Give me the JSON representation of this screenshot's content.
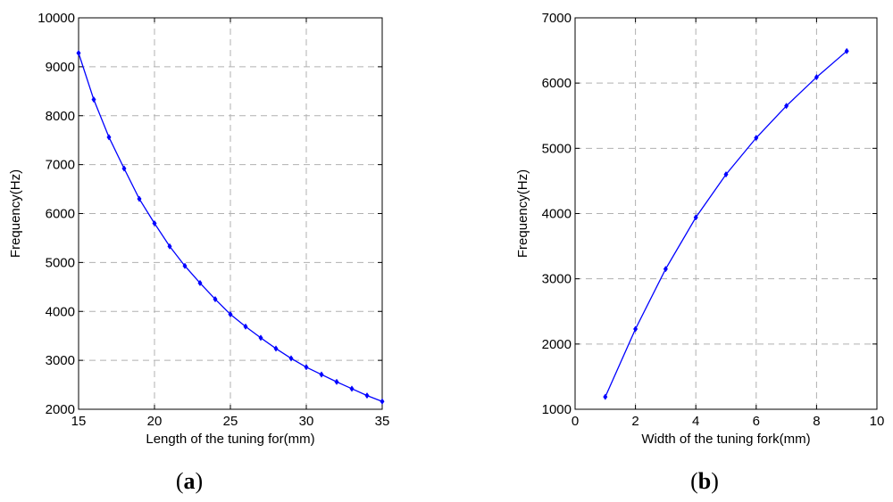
{
  "chart_data": [
    {
      "type": "line",
      "panel_label": "(a)",
      "panel_letter": "a",
      "xlabel": "Length of the tuning for(mm)",
      "ylabel": "Frequency(Hz)",
      "xlim": [
        15,
        35
      ],
      "ylim": [
        2000,
        10000
      ],
      "xticks": [
        15,
        20,
        25,
        30,
        35
      ],
      "yticks": [
        2000,
        3000,
        4000,
        5000,
        6000,
        7000,
        8000,
        9000,
        10000
      ],
      "grid": true,
      "line_color": "#0000ff",
      "series": [
        {
          "x": [
            15,
            16,
            17,
            18,
            19,
            20,
            21,
            22,
            23,
            24,
            25,
            26,
            27,
            28,
            29,
            30,
            31,
            32,
            33,
            34,
            35
          ],
          "y": [
            9280,
            8330,
            7560,
            6920,
            6300,
            5800,
            5330,
            4930,
            4580,
            4250,
            3940,
            3690,
            3460,
            3240,
            3040,
            2860,
            2710,
            2560,
            2420,
            2280,
            2160
          ]
        }
      ]
    },
    {
      "type": "line",
      "panel_label": "(b)",
      "panel_letter": "b",
      "xlabel": "Width of the tuning fork(mm)",
      "ylabel": "Frequency(Hz)",
      "xlim": [
        0,
        10
      ],
      "ylim": [
        1000,
        7000
      ],
      "xticks": [
        0,
        2,
        4,
        6,
        8,
        10
      ],
      "yticks": [
        1000,
        2000,
        3000,
        4000,
        5000,
        6000,
        7000
      ],
      "grid": true,
      "line_color": "#0000ff",
      "series": [
        {
          "x": [
            1,
            2,
            3,
            4,
            5,
            6,
            7,
            8,
            9
          ],
          "y": [
            1190,
            2230,
            3150,
            3940,
            4600,
            5160,
            5650,
            6090,
            6490
          ]
        }
      ]
    }
  ]
}
